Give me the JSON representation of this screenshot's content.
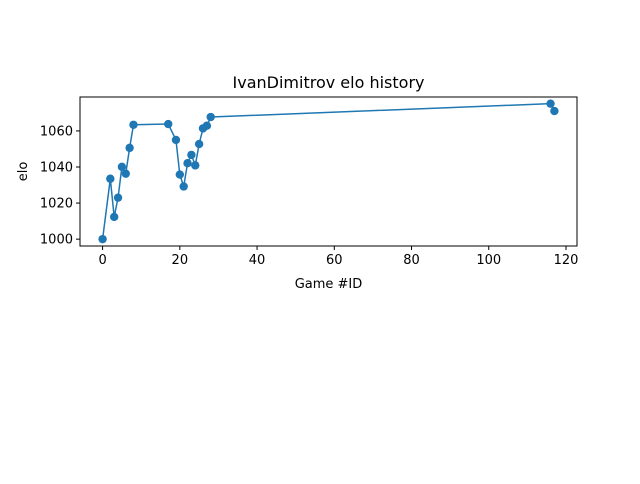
{
  "chart_data": {
    "type": "line",
    "title": "IvanDimitrov elo history",
    "xlabel": "Game #ID",
    "ylabel": "elo",
    "xlim": [
      -5.85,
      122.85
    ],
    "ylim": [
      996.2,
      1078.8
    ],
    "xticks": [
      0,
      20,
      40,
      60,
      80,
      100,
      120
    ],
    "yticks": [
      1000,
      1020,
      1040,
      1060
    ],
    "grid": false,
    "legend": false,
    "marker": "circle",
    "color": "#1f77b4",
    "series": [
      {
        "x": [
          0,
          2,
          3,
          4,
          5,
          6,
          7,
          8,
          17,
          19,
          20,
          21,
          22,
          23,
          24,
          25,
          26,
          27,
          28,
          116,
          117
        ],
        "y": [
          1000,
          1033.5,
          1012.3,
          1023,
          1040.1,
          1036.3,
          1050.6,
          1063.4,
          1063.8,
          1055,
          1035.8,
          1029.2,
          1042.1,
          1046.7,
          1040.9,
          1052.7,
          1061.4,
          1062.9,
          1067.7,
          1075.1,
          1071
        ]
      }
    ]
  }
}
